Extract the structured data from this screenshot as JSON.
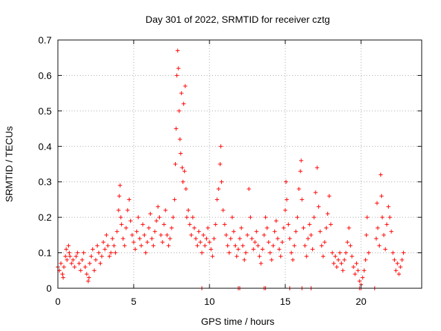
{
  "chart_data": {
    "type": "scatter",
    "title": "Day 301 of 2022, SRMTID for receiver cztg",
    "xlabel": "GPS time / hours",
    "ylabel": "SRMTID / TECUs",
    "xlim": [
      0,
      24
    ],
    "ylim": [
      0,
      0.7
    ],
    "xticks": [
      0,
      5,
      10,
      15,
      20
    ],
    "yticks": [
      0,
      0.1,
      0.2,
      0.3,
      0.4,
      0.5,
      0.6,
      0.7
    ],
    "xtick_labels": [
      "0",
      "5",
      "10",
      "15",
      "20"
    ],
    "ytick_labels": [
      "0",
      "0.1",
      "0.2",
      "0.3",
      "0.4",
      "0.5",
      "0.6",
      "0.7"
    ],
    "grid": true,
    "marker": "+",
    "color": "#ff0000",
    "series": [
      {
        "name": "SRMTID",
        "points": [
          [
            0.0,
            0.06
          ],
          [
            0.1,
            0.05
          ],
          [
            0.2,
            0.07
          ],
          [
            0.3,
            0.04
          ],
          [
            0.35,
            0.03
          ],
          [
            0.4,
            0.06
          ],
          [
            0.5,
            0.09
          ],
          [
            0.55,
            0.11
          ],
          [
            0.6,
            0.08
          ],
          [
            0.7,
            0.12
          ],
          [
            0.75,
            0.1
          ],
          [
            0.8,
            0.09
          ],
          [
            0.9,
            0.07
          ],
          [
            1.0,
            0.08
          ],
          [
            1.1,
            0.06
          ],
          [
            1.2,
            0.09
          ],
          [
            1.3,
            0.1
          ],
          [
            1.4,
            0.07
          ],
          [
            1.5,
            0.05
          ],
          [
            1.6,
            0.08
          ],
          [
            1.7,
            0.1
          ],
          [
            1.8,
            0.06
          ],
          [
            1.9,
            0.04
          ],
          [
            2.0,
            0.02
          ],
          [
            2.05,
            0.03
          ],
          [
            2.1,
            0.07
          ],
          [
            2.2,
            0.09
          ],
          [
            2.3,
            0.11
          ],
          [
            2.4,
            0.05
          ],
          [
            2.5,
            0.08
          ],
          [
            2.6,
            0.12
          ],
          [
            2.7,
            0.1
          ],
          [
            2.8,
            0.07
          ],
          [
            2.9,
            0.09
          ],
          [
            3.0,
            0.13
          ],
          [
            3.1,
            0.11
          ],
          [
            3.2,
            0.15
          ],
          [
            3.3,
            0.12
          ],
          [
            3.4,
            0.09
          ],
          [
            3.5,
            0.1
          ],
          [
            3.6,
            0.14
          ],
          [
            3.7,
            0.12
          ],
          [
            3.8,
            0.1
          ],
          [
            3.9,
            0.16
          ],
          [
            4.0,
            0.22
          ],
          [
            4.05,
            0.26
          ],
          [
            4.1,
            0.29
          ],
          [
            4.15,
            0.2
          ],
          [
            4.2,
            0.18
          ],
          [
            4.3,
            0.14
          ],
          [
            4.4,
            0.12
          ],
          [
            4.5,
            0.17
          ],
          [
            4.6,
            0.22
          ],
          [
            4.7,
            0.25
          ],
          [
            4.8,
            0.19
          ],
          [
            4.9,
            0.15
          ],
          [
            5.0,
            0.13
          ],
          [
            5.1,
            0.11
          ],
          [
            5.2,
            0.16
          ],
          [
            5.3,
            0.2
          ],
          [
            5.4,
            0.14
          ],
          [
            5.5,
            0.12
          ],
          [
            5.6,
            0.18
          ],
          [
            5.7,
            0.15
          ],
          [
            5.8,
            0.1
          ],
          [
            5.9,
            0.13
          ],
          [
            6.0,
            0.17
          ],
          [
            6.1,
            0.21
          ],
          [
            6.2,
            0.14
          ],
          [
            6.3,
            0.12
          ],
          [
            6.4,
            0.16
          ],
          [
            6.5,
            0.19
          ],
          [
            6.6,
            0.23
          ],
          [
            6.7,
            0.2
          ],
          [
            6.8,
            0.15
          ],
          [
            6.9,
            0.13
          ],
          [
            7.0,
            0.18
          ],
          [
            7.1,
            0.22
          ],
          [
            7.2,
            0.15
          ],
          [
            7.3,
            0.12
          ],
          [
            7.4,
            0.14
          ],
          [
            7.5,
            0.17
          ],
          [
            7.6,
            0.2
          ],
          [
            7.7,
            0.25
          ],
          [
            7.75,
            0.35
          ],
          [
            7.8,
            0.45
          ],
          [
            7.85,
            0.6
          ],
          [
            7.9,
            0.67
          ],
          [
            7.95,
            0.62
          ],
          [
            8.0,
            0.5
          ],
          [
            8.05,
            0.42
          ],
          [
            8.1,
            0.38
          ],
          [
            8.15,
            0.55
          ],
          [
            8.2,
            0.34
          ],
          [
            8.25,
            0.3
          ],
          [
            8.3,
            0.52
          ],
          [
            8.35,
            0.33
          ],
          [
            8.4,
            0.57
          ],
          [
            8.45,
            0.28
          ],
          [
            8.5,
            0.2
          ],
          [
            8.6,
            0.22
          ],
          [
            8.7,
            0.18
          ],
          [
            8.8,
            0.15
          ],
          [
            8.9,
            0.2
          ],
          [
            9.0,
            0.17
          ],
          [
            9.1,
            0.14
          ],
          [
            9.2,
            0.12
          ],
          [
            9.3,
            0.16
          ],
          [
            9.4,
            0.13
          ],
          [
            9.5,
            0.1
          ],
          [
            9.6,
            0.15
          ],
          [
            9.7,
            0.12
          ],
          [
            9.8,
            0.14
          ],
          [
            9.9,
            0.17
          ],
          [
            10.0,
            0.13
          ],
          [
            10.1,
            0.11
          ],
          [
            10.2,
            0.09
          ],
          [
            10.3,
            0.14
          ],
          [
            10.4,
            0.18
          ],
          [
            10.5,
            0.25
          ],
          [
            10.6,
            0.28
          ],
          [
            10.7,
            0.35
          ],
          [
            10.75,
            0.4
          ],
          [
            10.8,
            0.3
          ],
          [
            10.9,
            0.22
          ],
          [
            11.0,
            0.18
          ],
          [
            11.1,
            0.15
          ],
          [
            11.2,
            0.12
          ],
          [
            11.3,
            0.1
          ],
          [
            11.4,
            0.14
          ],
          [
            11.5,
            0.2
          ],
          [
            11.6,
            0.16
          ],
          [
            11.7,
            0.12
          ],
          [
            11.8,
            0.09
          ],
          [
            11.9,
            0.11
          ],
          [
            12.0,
            0.14
          ],
          [
            12.1,
            0.17
          ],
          [
            12.2,
            0.12
          ],
          [
            12.3,
            0.08
          ],
          [
            12.4,
            0.1
          ],
          [
            12.5,
            0.15
          ],
          [
            12.6,
            0.28
          ],
          [
            12.7,
            0.2
          ],
          [
            12.8,
            0.14
          ],
          [
            12.9,
            0.11
          ],
          [
            13.0,
            0.13
          ],
          [
            13.1,
            0.16
          ],
          [
            13.2,
            0.12
          ],
          [
            13.3,
            0.09
          ],
          [
            13.4,
            0.07
          ],
          [
            13.5,
            0.11
          ],
          [
            13.6,
            0.15
          ],
          [
            13.7,
            0.2
          ],
          [
            13.8,
            0.17
          ],
          [
            13.9,
            0.13
          ],
          [
            14.0,
            0.1
          ],
          [
            14.1,
            0.08
          ],
          [
            14.2,
            0.12
          ],
          [
            14.3,
            0.16
          ],
          [
            14.4,
            0.19
          ],
          [
            14.5,
            0.14
          ],
          [
            14.6,
            0.11
          ],
          [
            14.7,
            0.09
          ],
          [
            14.8,
            0.13
          ],
          [
            14.9,
            0.17
          ],
          [
            15.0,
            0.22
          ],
          [
            15.05,
            0.3
          ],
          [
            15.1,
            0.25
          ],
          [
            15.2,
            0.18
          ],
          [
            15.3,
            0.14
          ],
          [
            15.4,
            0.1
          ],
          [
            15.5,
            0.08
          ],
          [
            15.6,
            0.12
          ],
          [
            15.7,
            0.16
          ],
          [
            15.8,
            0.2
          ],
          [
            15.9,
            0.28
          ],
          [
            16.0,
            0.33
          ],
          [
            16.05,
            0.36
          ],
          [
            16.1,
            0.25
          ],
          [
            16.2,
            0.17
          ],
          [
            16.3,
            0.12
          ],
          [
            16.4,
            0.09
          ],
          [
            16.5,
            0.14
          ],
          [
            16.6,
            0.18
          ],
          [
            16.7,
            0.15
          ],
          [
            16.8,
            0.11
          ],
          [
            16.9,
            0.2
          ],
          [
            17.0,
            0.27
          ],
          [
            17.1,
            0.34
          ],
          [
            17.2,
            0.23
          ],
          [
            17.3,
            0.16
          ],
          [
            17.4,
            0.12
          ],
          [
            17.5,
            0.09
          ],
          [
            17.6,
            0.13
          ],
          [
            17.7,
            0.17
          ],
          [
            17.8,
            0.21
          ],
          [
            17.9,
            0.26
          ],
          [
            18.0,
            0.18
          ],
          [
            18.1,
            0.1
          ],
          [
            18.2,
            0.07
          ],
          [
            18.3,
            0.09
          ],
          [
            18.4,
            0.06
          ],
          [
            18.5,
            0.08
          ],
          [
            18.6,
            0.1
          ],
          [
            18.7,
            0.07
          ],
          [
            18.8,
            0.05
          ],
          [
            18.9,
            0.08
          ],
          [
            19.0,
            0.1
          ],
          [
            19.1,
            0.13
          ],
          [
            19.2,
            0.17
          ],
          [
            19.3,
            0.12
          ],
          [
            19.4,
            0.09
          ],
          [
            19.5,
            0.06
          ],
          [
            19.6,
            0.04
          ],
          [
            19.7,
            0.07
          ],
          [
            19.8,
            0.05
          ],
          [
            19.9,
            0.02
          ],
          [
            20.0,
            0.01
          ],
          [
            20.1,
            0.03
          ],
          [
            20.2,
            0.05
          ],
          [
            20.3,
            0.08
          ],
          [
            20.35,
            0.15
          ],
          [
            20.4,
            0.2
          ],
          [
            20.5,
            0.1
          ],
          [
            21.0,
            0.14
          ],
          [
            21.05,
            0.24
          ],
          [
            21.1,
            0.17
          ],
          [
            21.2,
            0.12
          ],
          [
            21.3,
            0.32
          ],
          [
            21.35,
            0.26
          ],
          [
            21.4,
            0.2
          ],
          [
            21.5,
            0.15
          ],
          [
            21.6,
            0.11
          ],
          [
            21.7,
            0.18
          ],
          [
            21.8,
            0.23
          ],
          [
            21.9,
            0.2
          ],
          [
            22.0,
            0.16
          ],
          [
            22.1,
            0.1
          ],
          [
            22.2,
            0.08
          ],
          [
            22.3,
            0.05
          ],
          [
            22.4,
            0.07
          ],
          [
            22.5,
            0.04
          ],
          [
            22.6,
            0.06
          ],
          [
            22.7,
            0.08
          ],
          [
            22.8,
            0.1
          ],
          [
            11.9,
            0.0
          ],
          [
            12.0,
            0.0
          ],
          [
            13.6,
            0.0
          ],
          [
            13.7,
            0.0
          ],
          [
            15.3,
            0.0
          ],
          [
            16.1,
            0.0
          ],
          [
            16.7,
            0.0
          ],
          [
            19.9,
            0.0
          ],
          [
            20.0,
            0.0
          ],
          [
            20.9,
            0.0
          ],
          [
            9.5,
            0.0
          ]
        ]
      }
    ]
  }
}
